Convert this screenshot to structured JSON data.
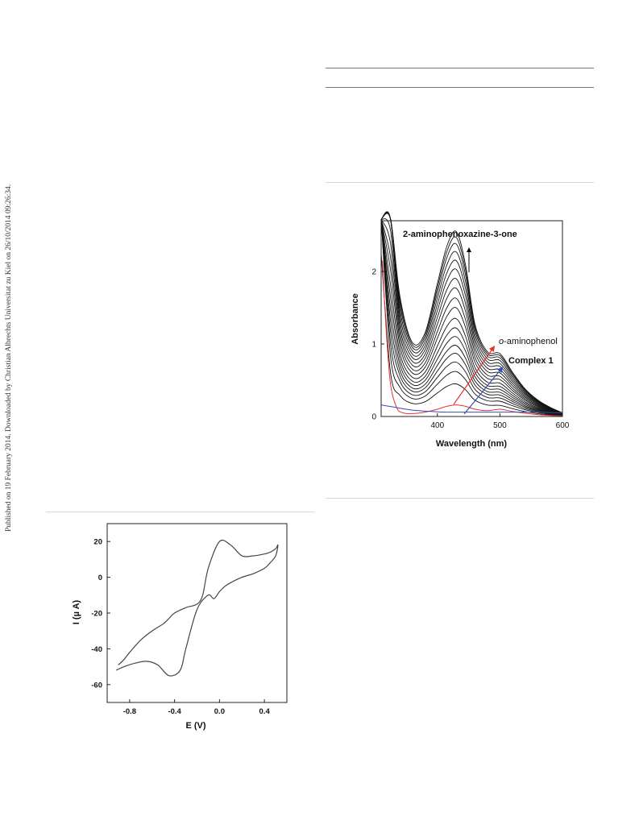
{
  "side_note": "Published on 19 February 2014. Downloaded by Christian Albrechts Universitat zu Kiel on 26/10/2014 09:26:34.",
  "colors": {
    "rule_dark": "#777777",
    "rule_green": "#d7dcc2",
    "red_series": "#e8322c",
    "blue_series": "#2f4fb5"
  },
  "chart_data": [
    {
      "type": "line",
      "title": "",
      "xlabel": "Wavelength (nm)",
      "ylabel": "Absorbance",
      "xlim": [
        310,
        600
      ],
      "ylim": [
        0,
        2.7
      ],
      "xticks": [
        400,
        500,
        600
      ],
      "yticks": [
        0,
        1,
        2
      ],
      "x": [
        310,
        325,
        340,
        360,
        380,
        400,
        415,
        430,
        445,
        460,
        480,
        500,
        520,
        540,
        560,
        580,
        600
      ],
      "series_shape": [
        5.0,
        1.35,
        0.65,
        0.4,
        0.45,
        0.72,
        0.92,
        1.0,
        0.82,
        0.5,
        0.35,
        0.34,
        0.24,
        0.15,
        0.09,
        0.05,
        0.02
      ],
      "series_peaks": [
        0.45,
        0.62,
        0.75,
        0.87,
        0.98,
        1.1,
        1.22,
        1.35,
        1.5,
        1.63,
        1.77,
        1.9,
        2.03,
        2.15,
        2.27,
        2.38,
        2.47,
        2.55
      ],
      "red_series": {
        "x": [
          312,
          318,
          325,
          335,
          345,
          360,
          380,
          400,
          415,
          430,
          445,
          460,
          480,
          500,
          520,
          545,
          570,
          600
        ],
        "values": [
          2.15,
          1.2,
          0.45,
          0.12,
          0.05,
          0.04,
          0.06,
          0.1,
          0.14,
          0.16,
          0.14,
          0.1,
          0.08,
          0.1,
          0.07,
          0.04,
          0.02,
          0.01
        ]
      },
      "blue_series": {
        "x": [
          310,
          330,
          350,
          370,
          390,
          410,
          450,
          500,
          550,
          600
        ],
        "values": [
          0.16,
          0.13,
          0.1,
          0.08,
          0.07,
          0.06,
          0.06,
          0.06,
          0.06,
          0.05
        ]
      },
      "annotations": {
        "top_label": "2-aminophenoxazine-3-one",
        "red_label_prefix": "o",
        "red_label_rest": "-aminophenol",
        "blue_label": "Complex 1"
      }
    },
    {
      "type": "line",
      "title": "",
      "xlabel": "E (V)",
      "ylabel": "I (µ A)",
      "xlim": [
        -1.0,
        0.6
      ],
      "ylim": [
        -70,
        30
      ],
      "xticks": [
        -0.8,
        -0.4,
        0.0,
        0.4
      ],
      "yticks": [
        20,
        0,
        -20,
        -40,
        -60
      ],
      "x": [
        -0.92,
        -0.85,
        -0.75,
        -0.65,
        -0.55,
        -0.45,
        -0.35,
        -0.3,
        -0.2,
        -0.1,
        -0.05,
        0.0,
        0.05,
        0.1,
        0.2,
        0.3,
        0.4,
        0.45,
        0.5,
        0.52,
        0.5,
        0.45,
        0.4,
        0.3,
        0.2,
        0.1,
        0.0,
        -0.1,
        -0.15,
        -0.2,
        -0.3,
        -0.4,
        -0.45,
        -0.5,
        -0.6,
        -0.7,
        -0.8,
        -0.85,
        -0.9
      ],
      "values": [
        -52,
        -50,
        -48,
        -47,
        -49,
        -55,
        -52,
        -40,
        -18,
        -10,
        -12,
        -8,
        -5,
        -3,
        0,
        2,
        5,
        8,
        12,
        18,
        16,
        14,
        13,
        12,
        12,
        18,
        20,
        5,
        -10,
        -15,
        -17,
        -20,
        -23,
        -26,
        -30,
        -35,
        -42,
        -46,
        -49
      ]
    }
  ]
}
